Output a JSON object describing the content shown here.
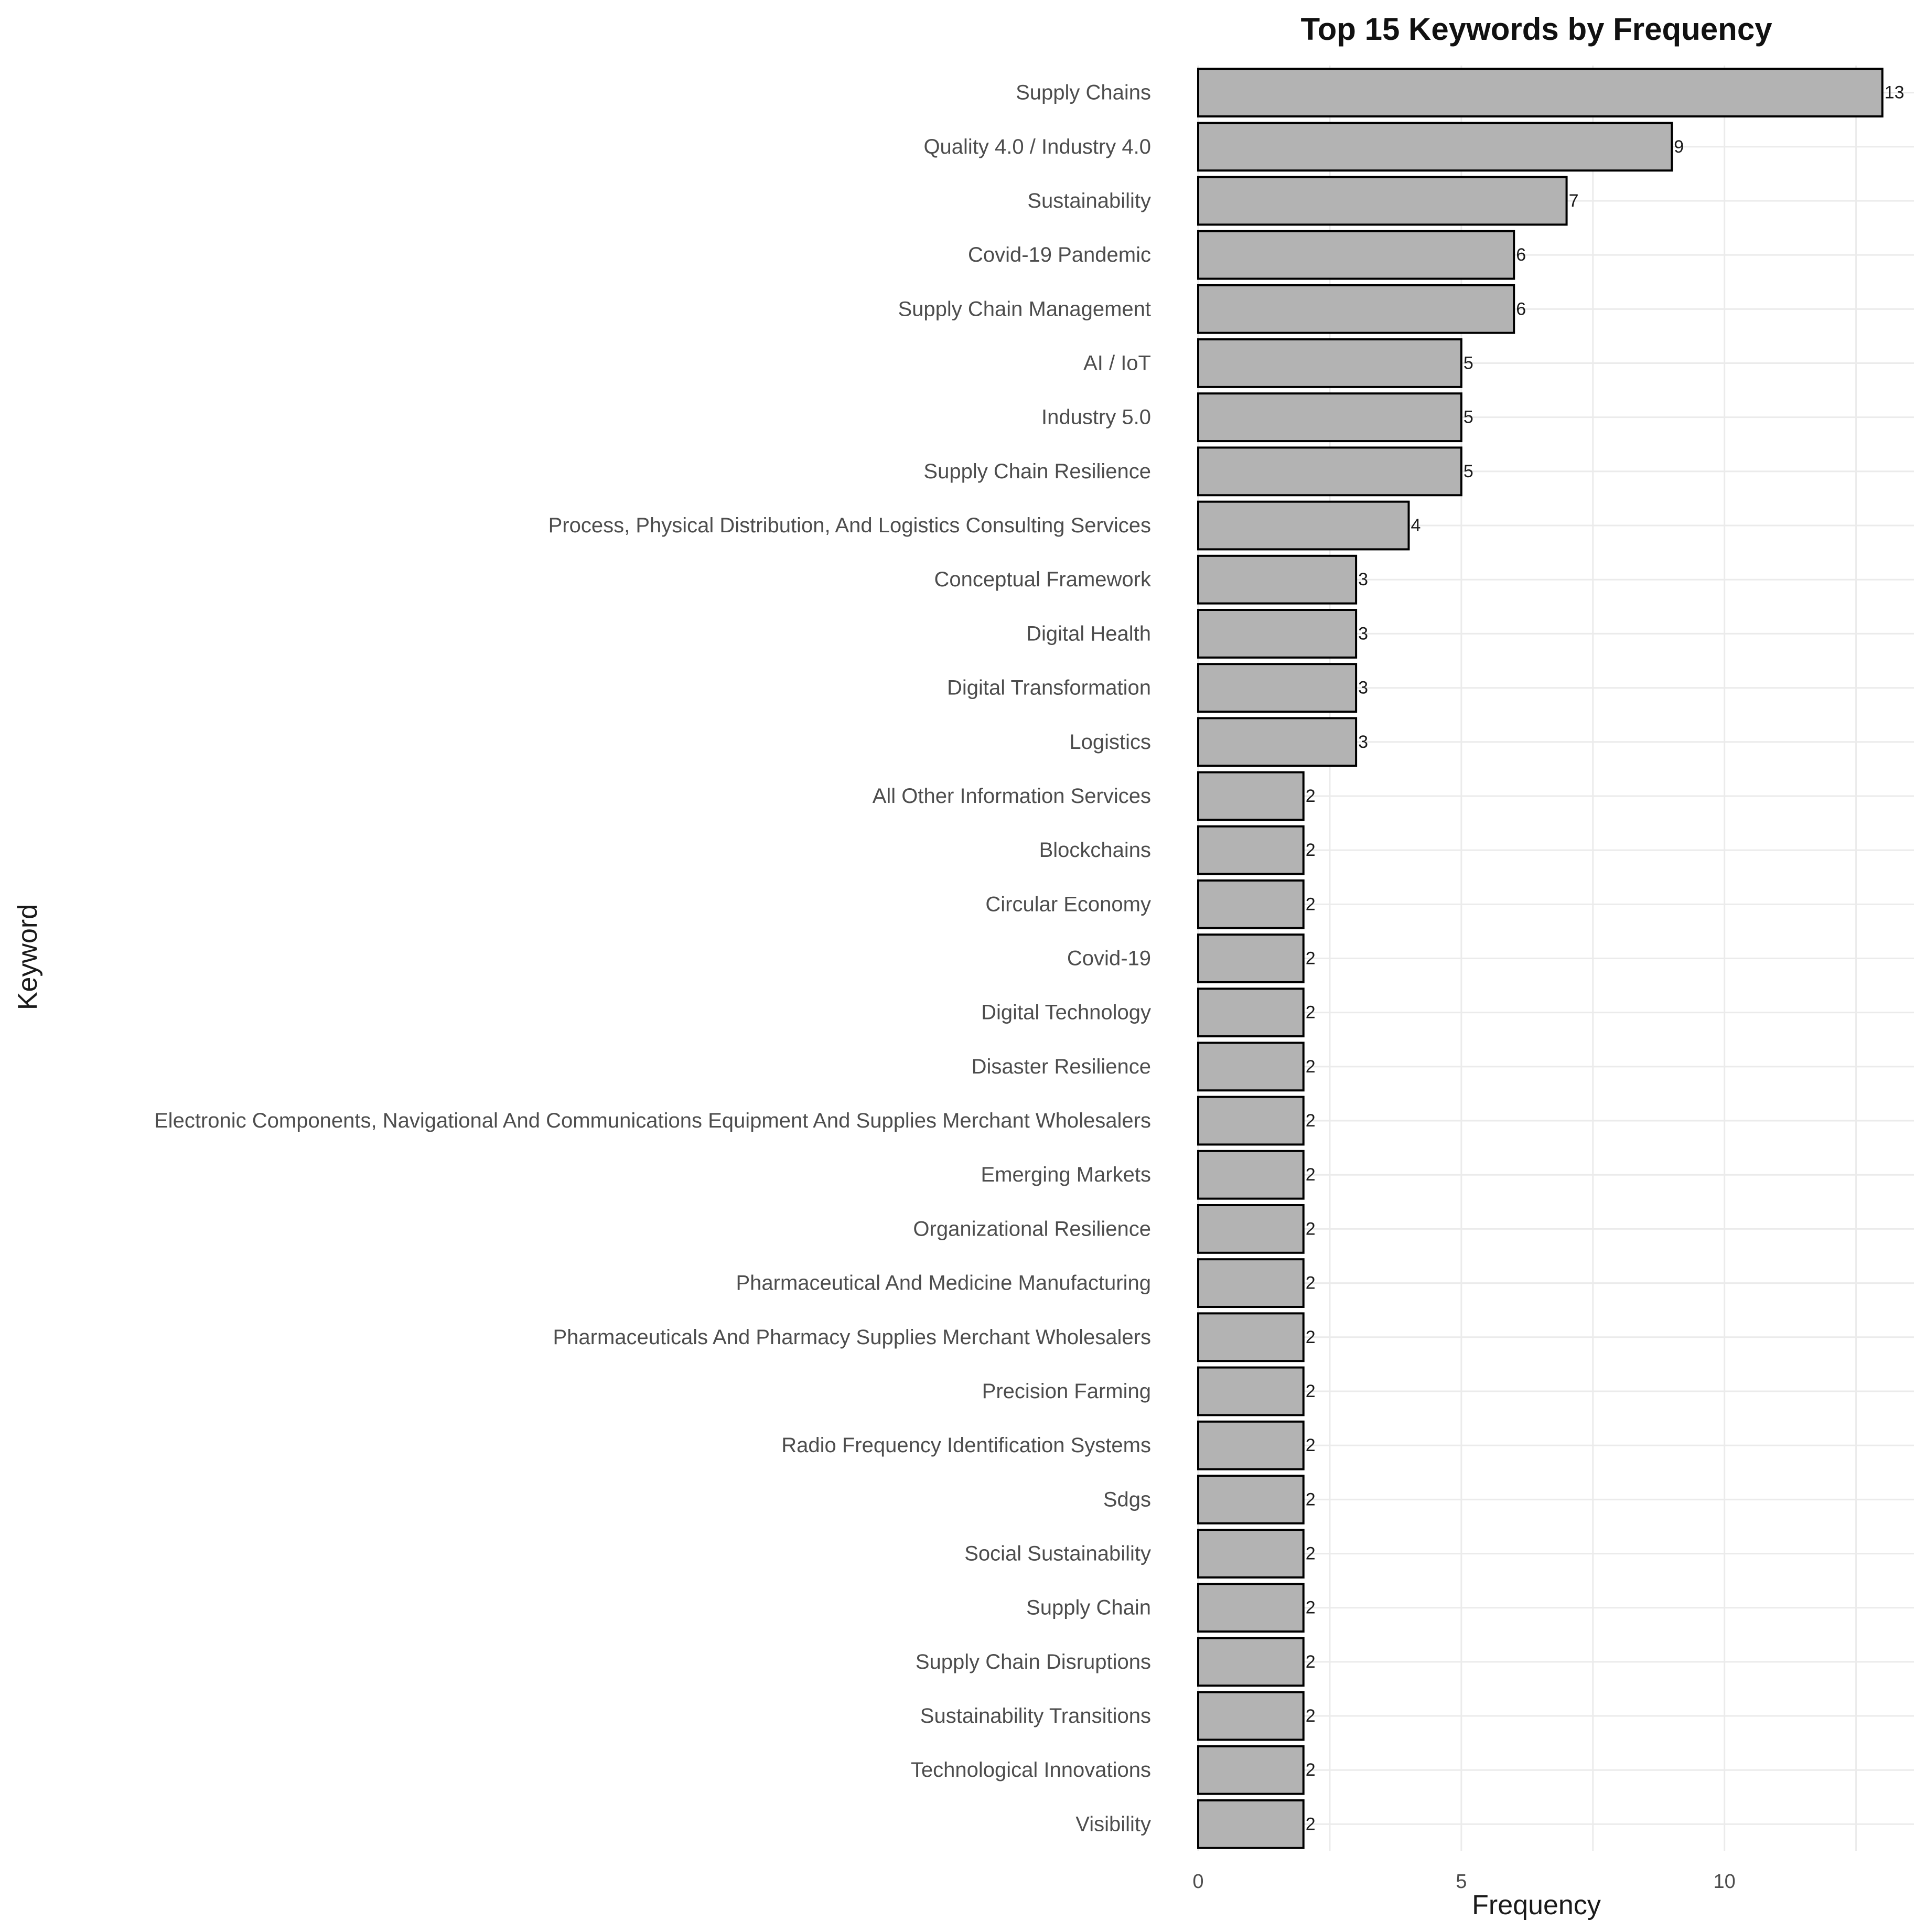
{
  "chart_data": {
    "type": "bar",
    "orientation": "horizontal",
    "title": "Top 15 Keywords by Frequency",
    "xlabel": "Frequency",
    "ylabel": "Keyword",
    "xlim": [
      0,
      13.6
    ],
    "x_ticks": [
      0,
      5,
      10
    ],
    "grid": true,
    "bar_fill": "#b3b3b3",
    "bar_stroke": "#000000",
    "grid_color": "#ebebeb",
    "categories": [
      "Supply Chains",
      "Quality 4.0 / Industry 4.0",
      "Sustainability",
      "Covid-19 Pandemic",
      "Supply Chain Management",
      "AI / IoT",
      "Industry 5.0",
      "Supply Chain Resilience",
      "Process, Physical Distribution, And Logistics Consulting Services",
      "Conceptual Framework",
      "Digital Health",
      "Digital Transformation",
      "Logistics",
      "All Other Information Services",
      "Blockchains",
      "Circular Economy",
      "Covid-19",
      "Digital Technology",
      "Disaster Resilience",
      "Electronic Components, Navigational And Communications Equipment And Supplies Merchant Wholesalers",
      "Emerging Markets",
      "Organizational Resilience",
      "Pharmaceutical And Medicine Manufacturing",
      "Pharmaceuticals And Pharmacy Supplies Merchant Wholesalers",
      "Precision Farming",
      "Radio Frequency Identification Systems",
      "Sdgs",
      "Social Sustainability",
      "Supply Chain",
      "Supply Chain Disruptions",
      "Sustainability Transitions",
      "Technological Innovations",
      "Visibility"
    ],
    "values": [
      13,
      9,
      7,
      6,
      6,
      5,
      5,
      5,
      4,
      3,
      3,
      3,
      3,
      2,
      2,
      2,
      2,
      2,
      2,
      2,
      2,
      2,
      2,
      2,
      2,
      2,
      2,
      2,
      2,
      2,
      2,
      2,
      2
    ]
  }
}
